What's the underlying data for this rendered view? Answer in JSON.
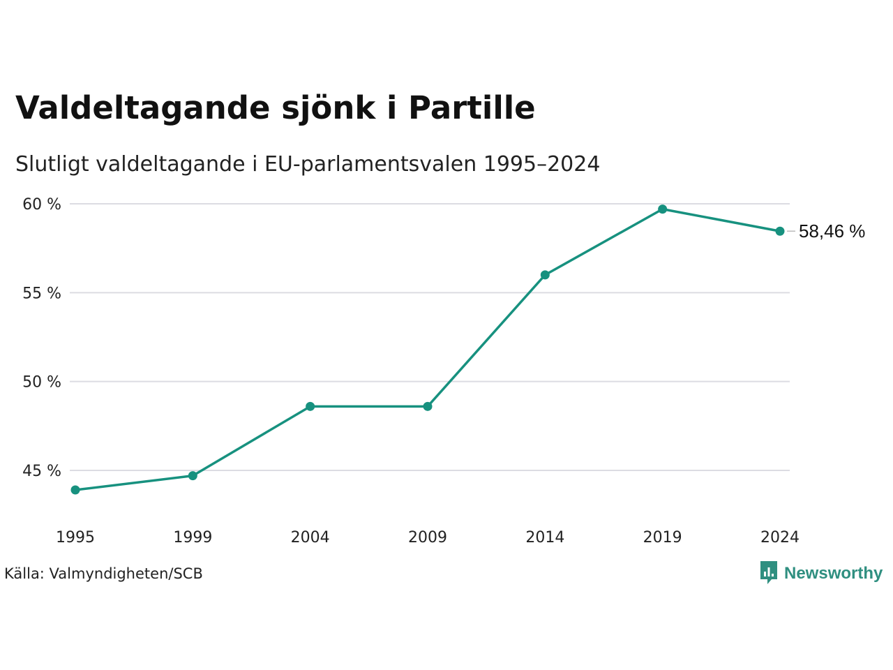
{
  "title": "Valdeltagande sjönk i Partille",
  "subtitle": "Slutligt valdeltagande i EU-parlamentsvalen 1995–2024",
  "source": "Källa: Valmyndigheten/SCB",
  "brand": {
    "name": "Newsworthy",
    "icon": "newsworthy-logo-icon",
    "color": "#2f8f80"
  },
  "chart_data": {
    "type": "line",
    "categories": [
      "1995",
      "1999",
      "2004",
      "2009",
      "2014",
      "2019",
      "2024"
    ],
    "series": [
      {
        "values": [
          43.9,
          44.7,
          48.6,
          48.6,
          56.0,
          59.7,
          58.46
        ],
        "color": "#17917f"
      }
    ],
    "ylim": [
      43,
      60
    ],
    "yticks": [
      45,
      50,
      55,
      60
    ],
    "ytick_labels": [
      "45 %",
      "50 %",
      "55 %",
      "60 %"
    ],
    "end_label": "58,46 %",
    "grid": true,
    "xlabel": "",
    "ylabel": ""
  }
}
